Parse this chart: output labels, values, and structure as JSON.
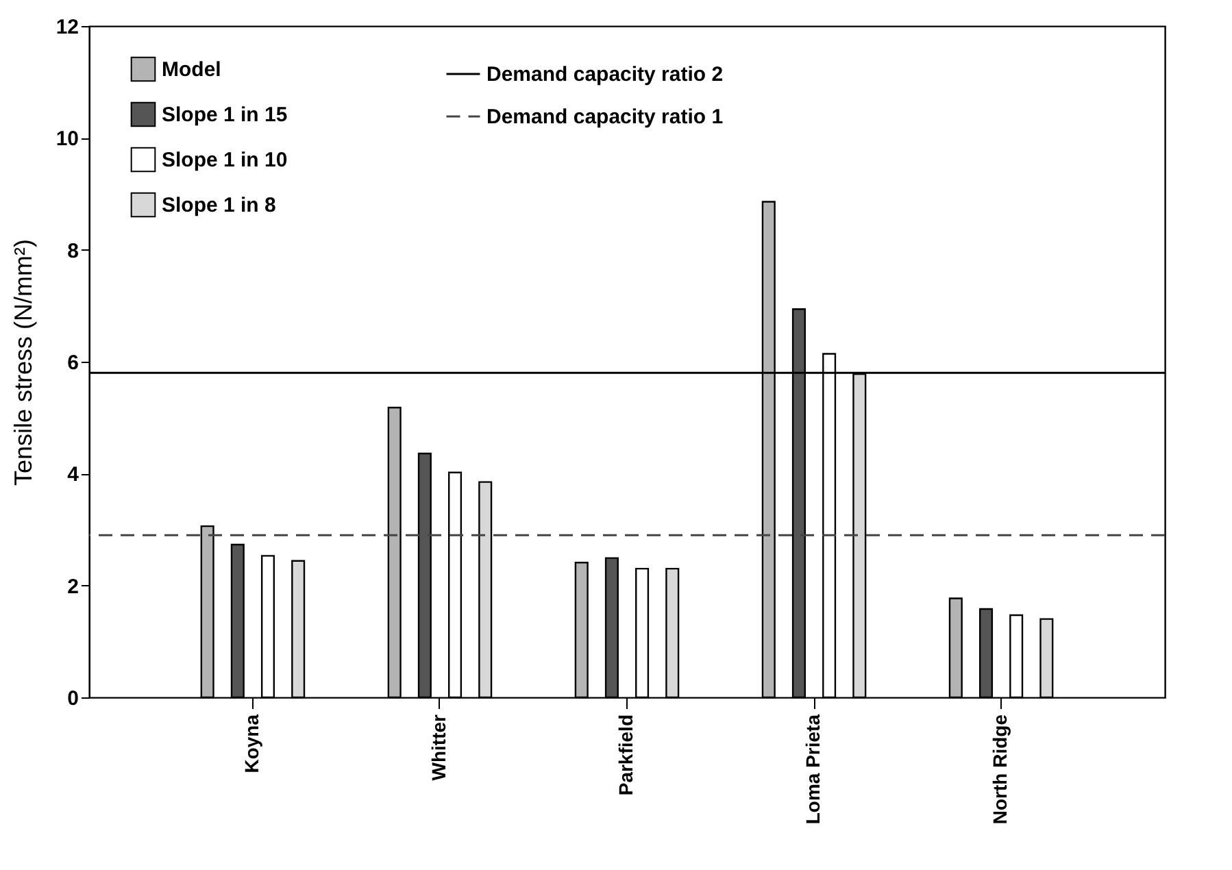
{
  "chart_data": {
    "type": "bar",
    "ylabel": "Tensile stress (N/mm²)",
    "categories": [
      "Koyna",
      "Whitter",
      "Parkfield",
      "Loma Prieta",
      "North Ridge"
    ],
    "series": [
      {
        "name": "Model",
        "color": "#b4b4b4",
        "values": [
          3.06,
          5.18,
          2.41,
          8.86,
          1.77
        ]
      },
      {
        "name": "Slope 1 in 15",
        "color": "#555555",
        "values": [
          2.73,
          4.36,
          2.49,
          6.94,
          1.58
        ]
      },
      {
        "name": "Slope 1 in 10",
        "color": "#ffffff",
        "values": [
          2.53,
          4.02,
          2.3,
          6.14,
          1.47
        ]
      },
      {
        "name": "Slope 1 in 8",
        "color": "#d8d8d8",
        "values": [
          2.44,
          3.85,
          2.3,
          5.78,
          1.4
        ]
      }
    ],
    "ylim": [
      0,
      12
    ],
    "yticks": [
      0,
      2,
      4,
      6,
      8,
      10,
      12
    ],
    "ref_lines": [
      {
        "axis": "y",
        "value": 5.8,
        "label": "Demand capacity ratio 2",
        "color": "#000000",
        "line_style": "solid"
      },
      {
        "axis": "y",
        "value": 2.9,
        "label": "Demand capacity ratio 1",
        "color": "#444444",
        "line_style": "dashed"
      }
    ],
    "grid": false,
    "legend": "top left"
  }
}
